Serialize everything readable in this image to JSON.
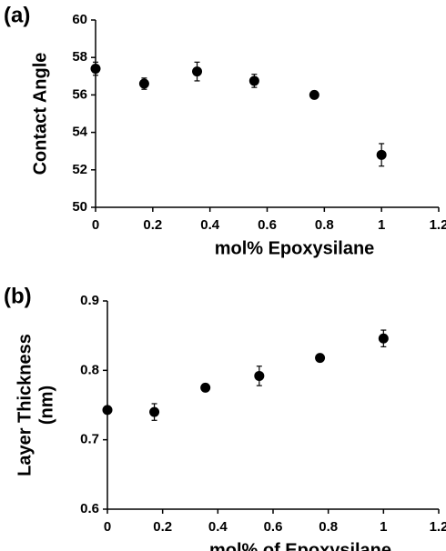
{
  "chart_data": [
    {
      "type": "scatter",
      "panel_label": "(a)",
      "ylabel": [
        "Contact Angle"
      ],
      "xlabel": "mol% Epoxysilane",
      "x": [
        0,
        0.17,
        0.355,
        0.555,
        0.765,
        1
      ],
      "series": [
        {
          "color": "#000000",
          "values": [
            57.4,
            56.6,
            57.25,
            56.75,
            56.0,
            52.8
          ],
          "errors": [
            0.35,
            0.3,
            0.5,
            0.35,
            0,
            0.6
          ]
        }
      ],
      "xlim": [
        0,
        1.2
      ],
      "xticks": [
        0,
        0.2,
        0.4,
        0.6,
        0.8,
        1,
        1.2
      ],
      "ylim": [
        50,
        60
      ],
      "yticks": [
        50,
        52,
        54,
        56,
        58,
        60
      ]
    },
    {
      "type": "scatter",
      "panel_label": "(b)",
      "ylabel": [
        "Layer Thickness",
        "(nm)"
      ],
      "xlabel": "mol% of Epoxysilane",
      "x": [
        0,
        0.17,
        0.355,
        0.55,
        0.77,
        1
      ],
      "series": [
        {
          "color": "#000000",
          "values": [
            0.743,
            0.74,
            0.775,
            0.792,
            0.818,
            0.846
          ],
          "errors": [
            0,
            0.012,
            0,
            0.014,
            0,
            0.012
          ]
        }
      ],
      "xlim": [
        0,
        1.2
      ],
      "xticks": [
        0,
        0.2,
        0.4,
        0.6,
        0.8,
        1,
        1.2
      ],
      "ylim": [
        0.6,
        0.9
      ],
      "yticks": [
        0.6,
        0.7,
        0.8,
        0.9
      ]
    }
  ]
}
